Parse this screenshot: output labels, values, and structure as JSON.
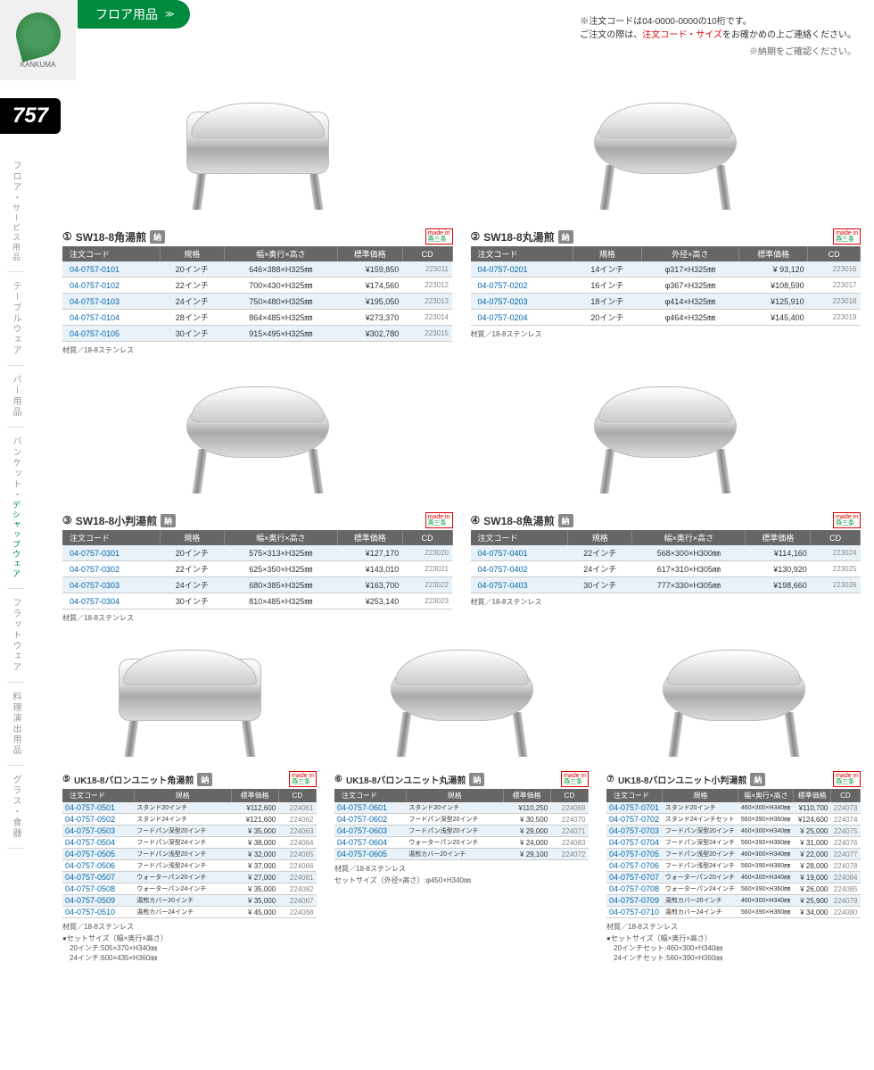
{
  "header": {
    "logo_text": "KANKUMA",
    "category": "フロア用品",
    "note1": "※注文コードは04-0000-0000の10桁です。",
    "note2_pre": "ご注文の際は、",
    "note2_highlight": "注文コード・サイズ",
    "note2_post": "をお確かめの上ご連絡ください。",
    "note3": "※納期をご確認ください。"
  },
  "page_number": "757",
  "sidebar": {
    "items": [
      {
        "main": "フロア・",
        "sub": "サービス用品"
      },
      {
        "main": "テーブルウェア",
        "sub": ""
      },
      {
        "main": "バー用品",
        "sub": ""
      },
      {
        "main": "バンケット・",
        "sub": "デシャップウェア"
      },
      {
        "main": "フラットウェア",
        "sub": ""
      },
      {
        "main": "料理演出用品",
        "sub": ""
      },
      {
        "main": "グラス・食器",
        "sub": ""
      }
    ]
  },
  "colors": {
    "brand_green": "#008a3e",
    "header_gray": "#666666",
    "row_blue": "#e8f2f8",
    "code_blue": "#0066aa",
    "badge_gray": "#888888",
    "red": "#d00000"
  },
  "table_headers": {
    "code": "注文コード",
    "spec": "規格",
    "wdh": "幅×奥行×高さ",
    "dh": "外径×高さ",
    "price": "標準価格",
    "cd": "CD"
  },
  "made_in": {
    "top": "made in",
    "bottom": "燕三条"
  },
  "nou": "納",
  "products": [
    {
      "num": "①",
      "title": "SW18-8角湯煎",
      "dim_header": "幅×奥行×高さ",
      "img_shape": "rect",
      "rows": [
        {
          "code": "04-0757-0101",
          "spec": "20インチ",
          "dim": "646×388×H325㎜",
          "price": "¥159,850",
          "cd": "223011"
        },
        {
          "code": "04-0757-0102",
          "spec": "22インチ",
          "dim": "700×430×H325㎜",
          "price": "¥174,560",
          "cd": "223012"
        },
        {
          "code": "04-0757-0103",
          "spec": "24インチ",
          "dim": "750×480×H325㎜",
          "price": "¥195,050",
          "cd": "223013"
        },
        {
          "code": "04-0757-0104",
          "spec": "28インチ",
          "dim": "864×485×H325㎜",
          "price": "¥273,370",
          "cd": "223014"
        },
        {
          "code": "04-0757-0105",
          "spec": "30インチ",
          "dim": "915×495×H325㎜",
          "price": "¥302,780",
          "cd": "223015"
        }
      ],
      "material": "材質／18-8ステンレス"
    },
    {
      "num": "②",
      "title": "SW18-8丸湯煎",
      "dim_header": "外径×高さ",
      "img_shape": "oval",
      "rows": [
        {
          "code": "04-0757-0201",
          "spec": "14インチ",
          "dim": "φ317×H325㎜",
          "price": "¥ 93,120",
          "cd": "223016"
        },
        {
          "code": "04-0757-0202",
          "spec": "16インチ",
          "dim": "φ367×H325㎜",
          "price": "¥108,590",
          "cd": "223017"
        },
        {
          "code": "04-0757-0203",
          "spec": "18インチ",
          "dim": "φ414×H325㎜",
          "price": "¥125,910",
          "cd": "223018"
        },
        {
          "code": "04-0757-0204",
          "spec": "20インチ",
          "dim": "φ464×H325㎜",
          "price": "¥145,400",
          "cd": "223019"
        }
      ],
      "material": "材質／18-8ステンレス"
    },
    {
      "num": "③",
      "title": "SW18-8小判湯煎",
      "dim_header": "幅×奥行×高さ",
      "img_shape": "oval",
      "rows": [
        {
          "code": "04-0757-0301",
          "spec": "20インチ",
          "dim": "575×313×H325㎜",
          "price": "¥127,170",
          "cd": "223020"
        },
        {
          "code": "04-0757-0302",
          "spec": "22インチ",
          "dim": "625×350×H325㎜",
          "price": "¥143,010",
          "cd": "223021"
        },
        {
          "code": "04-0757-0303",
          "spec": "24インチ",
          "dim": "680×385×H325㎜",
          "price": "¥163,700",
          "cd": "223022"
        },
        {
          "code": "04-0757-0304",
          "spec": "30インチ",
          "dim": "810×485×H325㎜",
          "price": "¥253,140",
          "cd": "223023"
        }
      ],
      "material": "材質／18-8ステンレス"
    },
    {
      "num": "④",
      "title": "SW18-8魚湯煎",
      "dim_header": "幅×奥行×高さ",
      "img_shape": "oval",
      "rows": [
        {
          "code": "04-0757-0401",
          "spec": "22インチ",
          "dim": "568×300×H300㎜",
          "price": "¥114,160",
          "cd": "223024"
        },
        {
          "code": "04-0757-0402",
          "spec": "24インチ",
          "dim": "617×310×H305㎜",
          "price": "¥130,920",
          "cd": "223025"
        },
        {
          "code": "04-0757-0403",
          "spec": "30インチ",
          "dim": "777×330×H305㎜",
          "price": "¥198,660",
          "cd": "223026"
        }
      ],
      "material": "材質／18-8ステンレス"
    }
  ],
  "products3": [
    {
      "num": "⑤",
      "title": "UK18-8バロンユニット角湯煎",
      "img_shape": "rect",
      "cols": [
        "注文コード",
        "規格",
        "標準価格",
        "CD"
      ],
      "rows": [
        {
          "code": "04-0757-0501",
          "spec": "スタンド20インチ",
          "price": "¥112,600",
          "cd": "224061"
        },
        {
          "code": "04-0757-0502",
          "spec": "スタンド24インチ",
          "price": "¥121,600",
          "cd": "224062"
        },
        {
          "code": "04-0757-0503",
          "spec": "フードパン深型20インチ",
          "price": "¥ 35,000",
          "cd": "224063"
        },
        {
          "code": "04-0757-0504",
          "spec": "フードパン深型24インチ",
          "price": "¥ 38,000",
          "cd": "224064"
        },
        {
          "code": "04-0757-0505",
          "spec": "フードパン浅型20インチ",
          "price": "¥ 32,000",
          "cd": "224065"
        },
        {
          "code": "04-0757-0506",
          "spec": "フードパン浅型24インチ",
          "price": "¥ 37,000",
          "cd": "224066"
        },
        {
          "code": "04-0757-0507",
          "spec": "ウォーターパン20インチ",
          "price": "¥ 27,000",
          "cd": "224081"
        },
        {
          "code": "04-0757-0508",
          "spec": "ウォーターパン24インチ",
          "price": "¥ 35,000",
          "cd": "224082"
        },
        {
          "code": "04-0757-0509",
          "spec": "湯煎カバー20インチ",
          "price": "¥ 35,000",
          "cd": "224067"
        },
        {
          "code": "04-0757-0510",
          "spec": "湯煎カバー24インチ",
          "price": "¥ 45,000",
          "cd": "224068"
        }
      ],
      "material": "材質／18-8ステンレス",
      "set_info": "●セットサイズ（幅×奥行×高さ）\n　20インチ:505×370×H340㎜\n　24インチ:600×435×H360㎜"
    },
    {
      "num": "⑥",
      "title": "UK18-8バロンユニット丸湯煎",
      "img_shape": "oval",
      "cols": [
        "注文コード",
        "規格",
        "標準価格",
        "CD"
      ],
      "rows": [
        {
          "code": "04-0757-0601",
          "spec": "スタンド20インチ",
          "price": "¥110,250",
          "cd": "224069"
        },
        {
          "code": "04-0757-0602",
          "spec": "フードパン深型20インチ",
          "price": "¥ 30,500",
          "cd": "224070"
        },
        {
          "code": "04-0757-0603",
          "spec": "フードパン浅型20インチ",
          "price": "¥ 29,000",
          "cd": "224071"
        },
        {
          "code": "04-0757-0604",
          "spec": "ウォーターパン20インチ",
          "price": "¥ 24,000",
          "cd": "224083"
        },
        {
          "code": "04-0757-0605",
          "spec": "湯煎カバー20インチ",
          "price": "¥ 29,100",
          "cd": "224072"
        }
      ],
      "material": "材質／18-8ステンレス",
      "set_info": "セットサイズ（外径×高さ）:φ450×H340㎜"
    },
    {
      "num": "⑦",
      "title": "UK18-8バロンユニット小判湯煎",
      "img_shape": "oval",
      "cols": [
        "注文コード",
        "規格",
        "幅×奥行×高さ",
        "標準価格",
        "CD"
      ],
      "rows": [
        {
          "code": "04-0757-0701",
          "spec": "スタンド20インチ",
          "dim": "460×300×H340㎜",
          "price": "¥110,700",
          "cd": "224073"
        },
        {
          "code": "04-0757-0702",
          "spec": "スタンド24インチセット",
          "dim": "560×390×H360㎜",
          "price": "¥124,600",
          "cd": "224074"
        },
        {
          "code": "04-0757-0703",
          "spec": "フードパン深型20インチ",
          "dim": "460×300×H340㎜",
          "price": "¥ 25,000",
          "cd": "224075"
        },
        {
          "code": "04-0757-0704",
          "spec": "フードパン深型24インチ",
          "dim": "560×390×H360㎜",
          "price": "¥ 31,000",
          "cd": "224076"
        },
        {
          "code": "04-0757-0705",
          "spec": "フードパン浅型20インチ",
          "dim": "460×300×H340㎜",
          "price": "¥ 22,000",
          "cd": "224077"
        },
        {
          "code": "04-0757-0706",
          "spec": "フードパン浅型24インチ",
          "dim": "560×390×H360㎜",
          "price": "¥ 28,000",
          "cd": "224078"
        },
        {
          "code": "04-0757-0707",
          "spec": "ウォーターパン20インチ",
          "dim": "460×300×H340㎜",
          "price": "¥ 19,000",
          "cd": "224084"
        },
        {
          "code": "04-0757-0708",
          "spec": "ウォーターパン24インチ",
          "dim": "560×390×H360㎜",
          "price": "¥ 26,000",
          "cd": "224085"
        },
        {
          "code": "04-0757-0709",
          "spec": "湯煎カバー20インチ",
          "dim": "460×300×H340㎜",
          "price": "¥ 25,900",
          "cd": "224079"
        },
        {
          "code": "04-0757-0710",
          "spec": "湯煎カバー24インチ",
          "dim": "560×390×H360㎜",
          "price": "¥ 34,000",
          "cd": "224080"
        }
      ],
      "material": "材質／18-8ステンレス",
      "set_info": "●セットサイズ（幅×奥行×高さ）\n　20インチセット:460×300×H340㎜\n　24インチセット:560×390×H360㎜"
    }
  ]
}
